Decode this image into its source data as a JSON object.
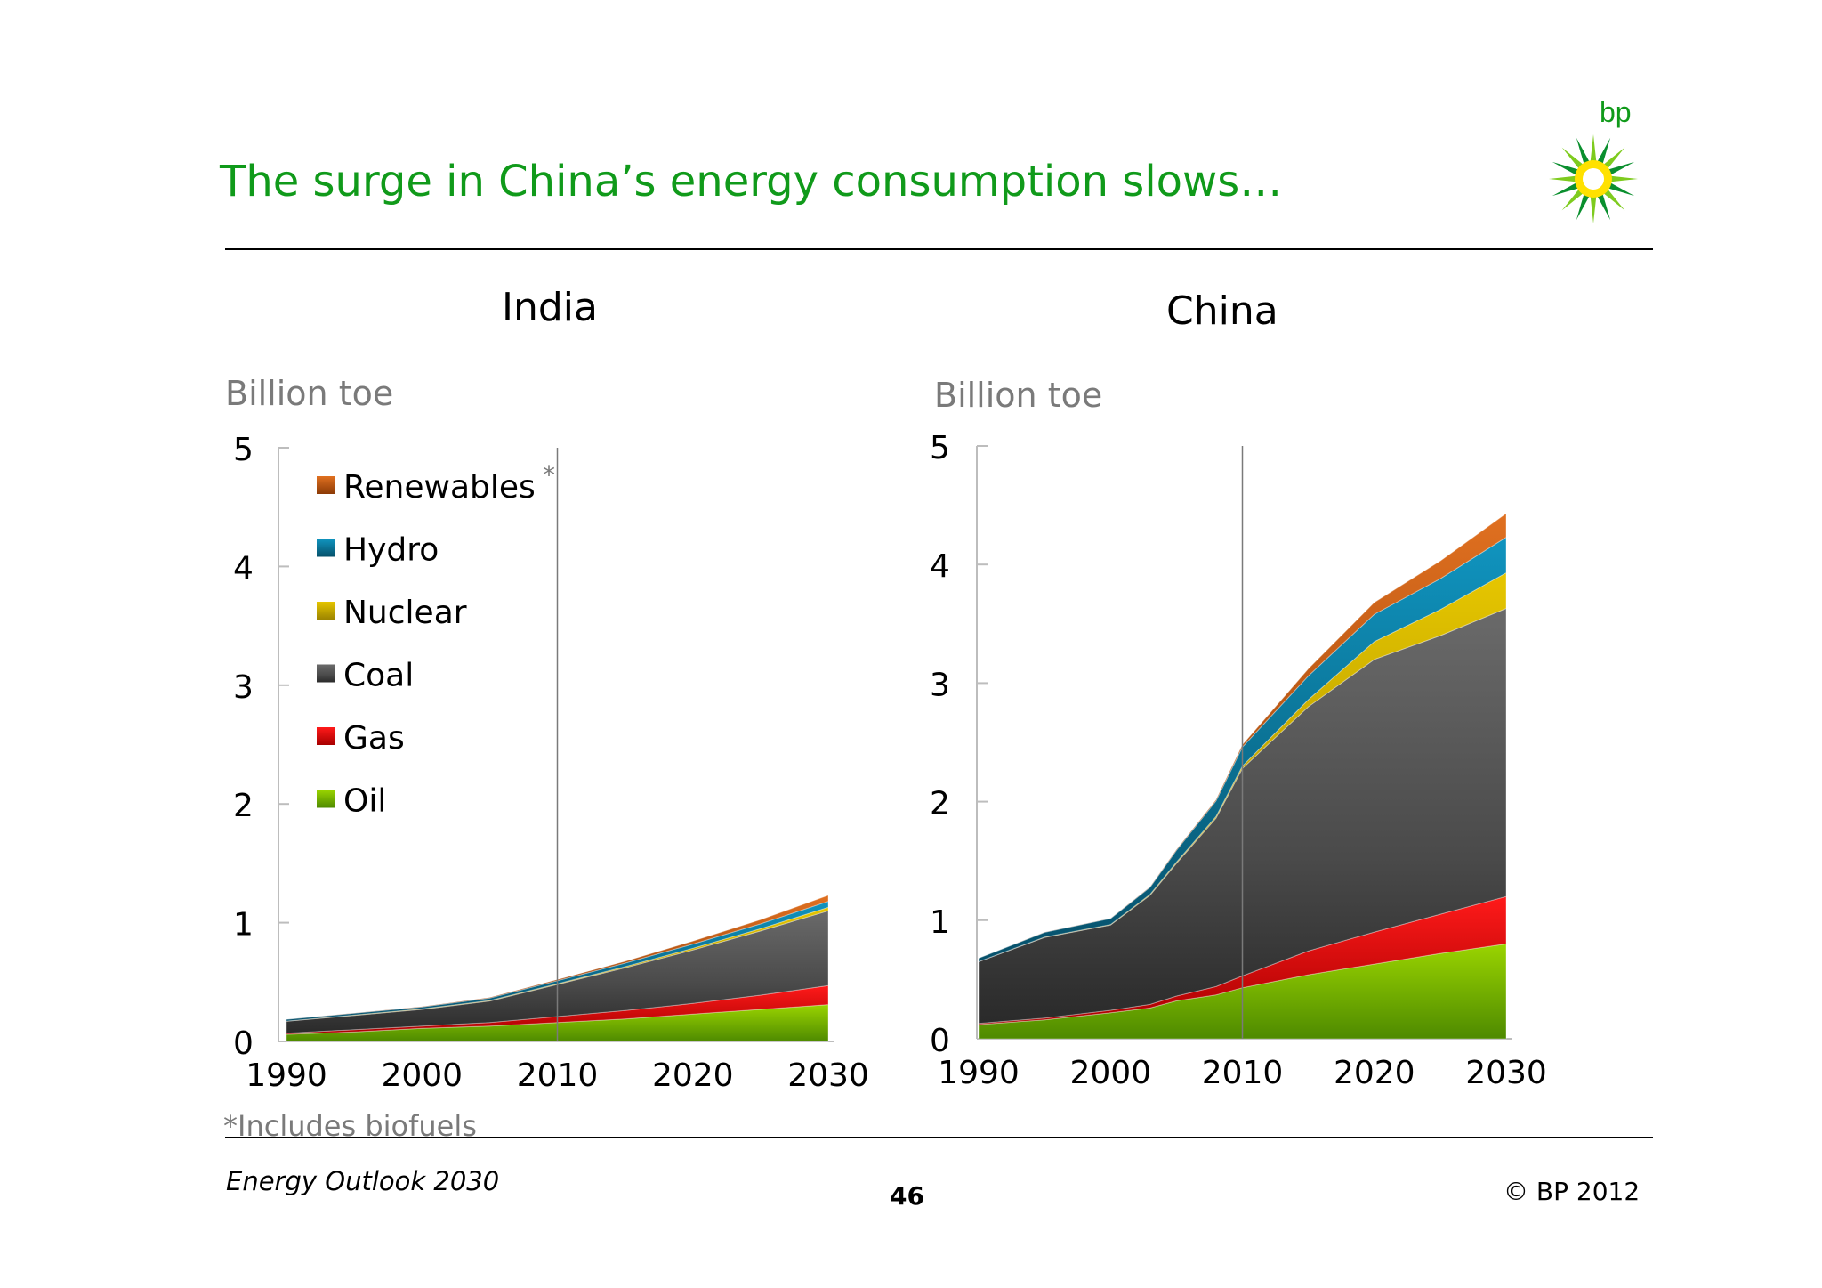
{
  "slide": {
    "title": "The surge in China’s energy consumption slows…",
    "logo_text": "bp",
    "footnote": "*Includes biofuels",
    "footer_left": "Energy Outlook 2030",
    "page_number": "46",
    "copyright": "© BP 2012"
  },
  "legend": {
    "items": [
      {
        "label": "Renewables",
        "color": "#e06a1a"
      },
      {
        "label": "Hydro",
        "color": "#0e7ea0"
      },
      {
        "label": "Nuclear",
        "color": "#d4b800"
      },
      {
        "label": "Coal",
        "color": "#555555"
      },
      {
        "label": "Gas",
        "color": "#dd0a0a"
      },
      {
        "label": "Oil",
        "color": "#78b800"
      }
    ],
    "asterisk": "*"
  },
  "colors": {
    "oil": "#78c000",
    "gas": "#e00808",
    "coal": "#4d4d4d",
    "nuclear": "#d2b200",
    "hydro": "#0a7296",
    "renewables": "#c85c12",
    "title": "#109a1a"
  },
  "chart_data": [
    {
      "type": "area",
      "title": "India",
      "ylabel": "Billion toe",
      "ylim": [
        0,
        5
      ],
      "yticks": [
        "0",
        "1",
        "2",
        "3",
        "4",
        "5"
      ],
      "xticks": [
        "1990",
        "2000",
        "2010",
        "2020",
        "2030"
      ],
      "xlim": [
        1990,
        2030
      ],
      "divider_year": 2010,
      "stacked": true,
      "x": [
        1990,
        1995,
        2000,
        2005,
        2010,
        2015,
        2020,
        2025,
        2030
      ],
      "series": [
        {
          "name": "Oil",
          "values": [
            0.06,
            0.08,
            0.11,
            0.13,
            0.16,
            0.19,
            0.23,
            0.27,
            0.31
          ]
        },
        {
          "name": "Gas",
          "values": [
            0.01,
            0.02,
            0.02,
            0.03,
            0.05,
            0.07,
            0.09,
            0.12,
            0.16
          ]
        },
        {
          "name": "Coal",
          "values": [
            0.1,
            0.12,
            0.14,
            0.18,
            0.27,
            0.36,
            0.45,
            0.54,
            0.63
          ]
        },
        {
          "name": "Nuclear",
          "values": [
            0.002,
            0.003,
            0.004,
            0.005,
            0.006,
            0.01,
            0.015,
            0.02,
            0.03
          ]
        },
        {
          "name": "Hydro",
          "values": [
            0.015,
            0.015,
            0.017,
            0.02,
            0.025,
            0.03,
            0.035,
            0.04,
            0.05
          ]
        },
        {
          "name": "Renewables",
          "values": [
            0.0,
            0.001,
            0.002,
            0.005,
            0.01,
            0.015,
            0.025,
            0.035,
            0.05
          ]
        }
      ]
    },
    {
      "type": "area",
      "title": "China",
      "ylabel": "Billion toe",
      "ylim": [
        0,
        5
      ],
      "yticks": [
        "0",
        "1",
        "2",
        "3",
        "4",
        "5"
      ],
      "xticks": [
        "1990",
        "2000",
        "2010",
        "2020",
        "2030"
      ],
      "xlim": [
        1990,
        2030
      ],
      "divider_year": 2010,
      "stacked": true,
      "x": [
        1990,
        1995,
        2000,
        2003,
        2005,
        2008,
        2010,
        2015,
        2020,
        2025,
        2030
      ],
      "series": [
        {
          "name": "Oil",
          "values": [
            0.12,
            0.16,
            0.22,
            0.26,
            0.32,
            0.37,
            0.43,
            0.54,
            0.63,
            0.72,
            0.8
          ]
        },
        {
          "name": "Gas",
          "values": [
            0.01,
            0.015,
            0.02,
            0.03,
            0.04,
            0.07,
            0.1,
            0.2,
            0.27,
            0.33,
            0.4
          ]
        },
        {
          "name": "Coal",
          "values": [
            0.52,
            0.68,
            0.72,
            0.92,
            1.12,
            1.42,
            1.75,
            2.06,
            2.3,
            2.35,
            2.43
          ]
        },
        {
          "name": "Nuclear",
          "values": [
            0.0,
            0.003,
            0.004,
            0.008,
            0.01,
            0.015,
            0.02,
            0.06,
            0.15,
            0.22,
            0.3
          ]
        },
        {
          "name": "Hydro",
          "values": [
            0.03,
            0.04,
            0.05,
            0.06,
            0.1,
            0.13,
            0.16,
            0.2,
            0.23,
            0.26,
            0.3
          ]
        },
        {
          "name": "Renewables",
          "values": [
            0.0,
            0.001,
            0.002,
            0.003,
            0.005,
            0.01,
            0.02,
            0.06,
            0.1,
            0.15,
            0.2
          ]
        }
      ]
    }
  ]
}
